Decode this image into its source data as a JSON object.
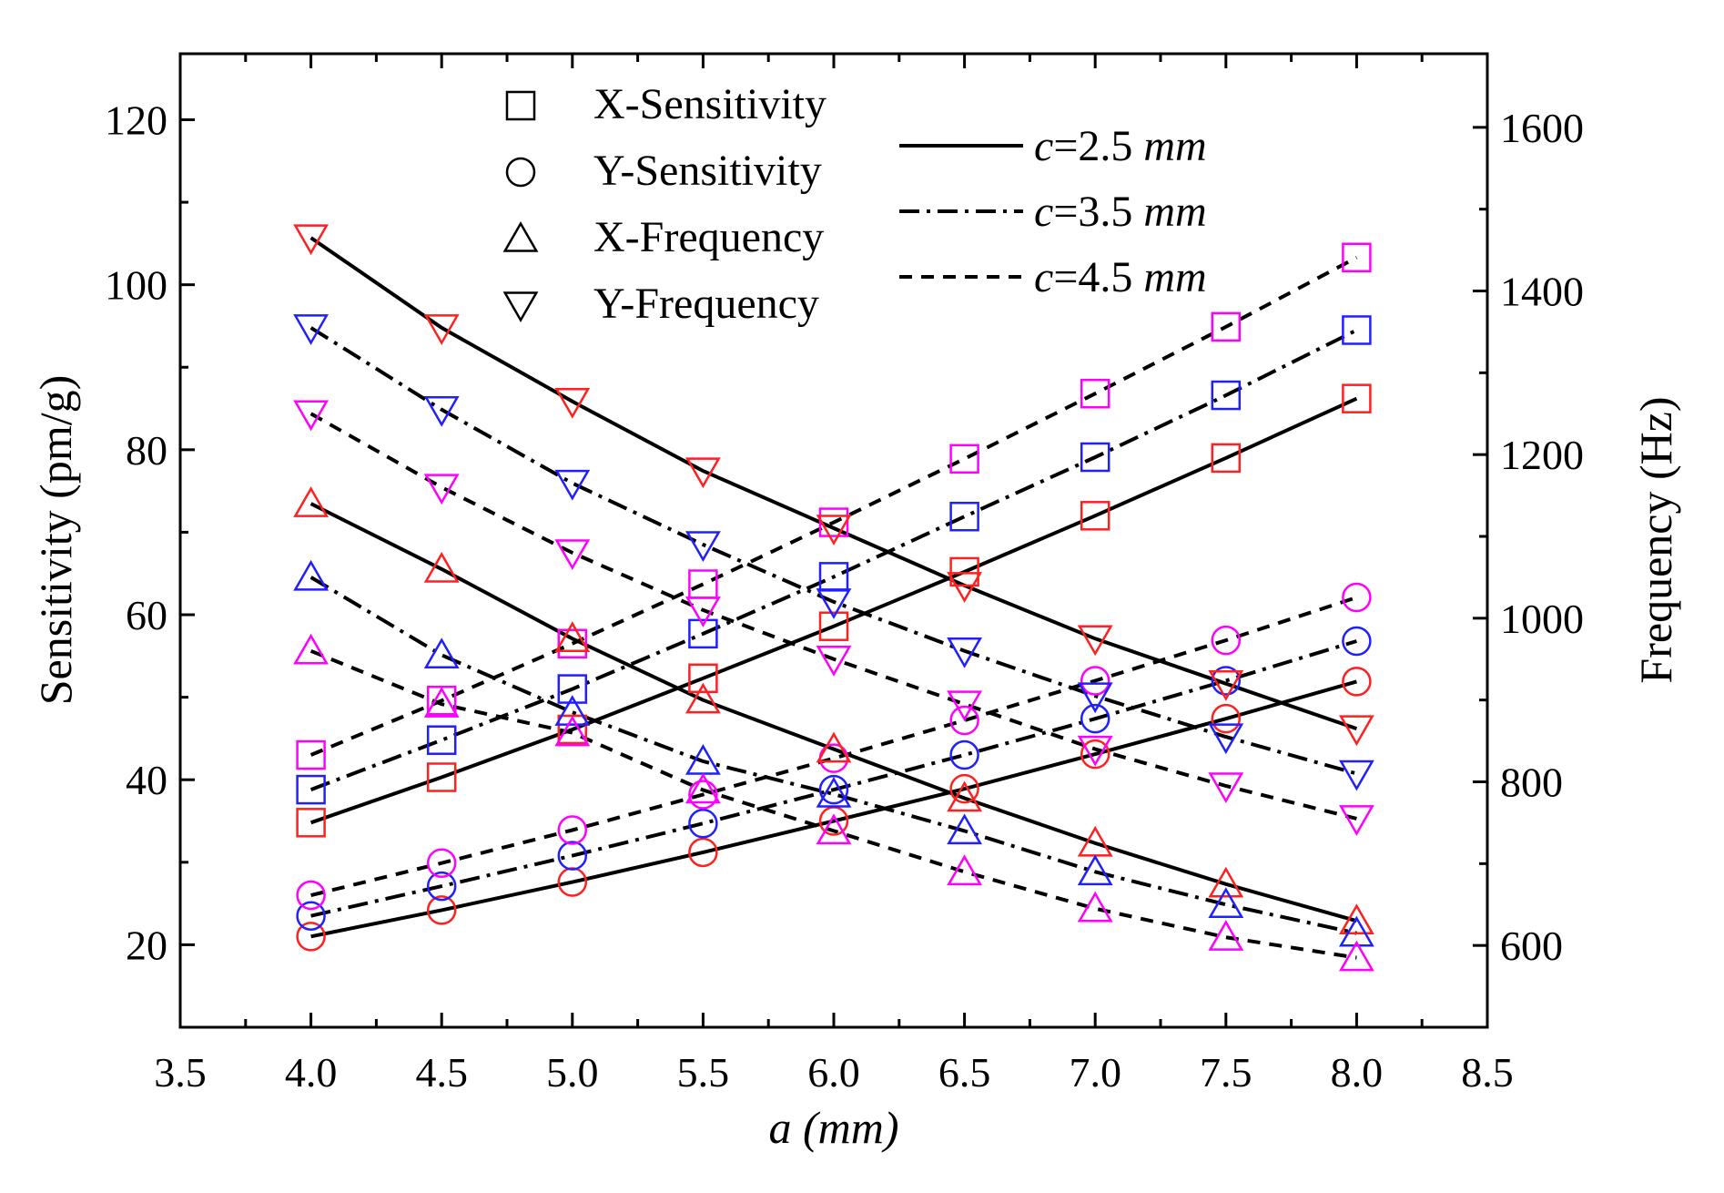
{
  "chart_data": {
    "type": "line",
    "x": [
      4.0,
      4.5,
      5.0,
      5.5,
      6.0,
      6.5,
      7.0,
      7.5,
      8.0
    ],
    "xlabel": "a (mm)",
    "ylabel_left": "Sensitivity (pm/g)",
    "ylabel_right": "Frequency (Hz)",
    "xlim": [
      3.5,
      8.5
    ],
    "ylim_left": [
      10,
      128
    ],
    "ylim_right": [
      500,
      1690
    ],
    "x_ticks": [
      "3.5",
      "4.0",
      "4.5",
      "5.0",
      "5.5",
      "6.0",
      "6.5",
      "7.0",
      "7.5",
      "8.0",
      "8.5"
    ],
    "y_left_ticks": [
      "20",
      "40",
      "60",
      "80",
      "100",
      "120"
    ],
    "y_right_ticks": [
      "600",
      "800",
      "1000",
      "1200",
      "1400",
      "1600"
    ],
    "colors": {
      "c2.5": "#ff2020",
      "c3.5": "#2020ff",
      "c4.5": "#ff00ff",
      "line": "#000000"
    },
    "legend_markers": [
      {
        "marker": "square",
        "label": "X-Sensitivity"
      },
      {
        "marker": "circle",
        "label": "Y-Sensitivity"
      },
      {
        "marker": "triangle-up",
        "label": "X-Frequency"
      },
      {
        "marker": "triangle-down",
        "label": "Y-Frequency"
      }
    ],
    "legend_lines": [
      {
        "style": "solid",
        "prefix": "c",
        "label": "=2.5 ",
        "unit": "mm"
      },
      {
        "style": "dashdot",
        "prefix": "c",
        "label": "=3.5 ",
        "unit": "mm"
      },
      {
        "style": "dash",
        "prefix": "c",
        "label": "=4.5 ",
        "unit": "mm"
      }
    ],
    "series": [
      {
        "name": "X-Sensitivity c=2.5 mm",
        "axis": "left",
        "marker": "square",
        "group": "c2.5",
        "values": [
          34.8,
          40.3,
          46.1,
          52.3,
          58.6,
          65.2,
          72.0,
          79.0,
          86.2
        ]
      },
      {
        "name": "X-Sensitivity c=3.5 mm",
        "axis": "left",
        "marker": "square",
        "group": "c3.5",
        "values": [
          38.8,
          44.8,
          51.0,
          57.7,
          64.6,
          71.9,
          79.1,
          86.6,
          94.5
        ]
      },
      {
        "name": "X-Sensitivity c=4.5 mm",
        "axis": "left",
        "marker": "square",
        "group": "c4.5",
        "values": [
          43.0,
          49.6,
          56.5,
          63.7,
          71.2,
          78.9,
          86.8,
          94.9,
          103.3
        ]
      },
      {
        "name": "Y-Sensitivity c=2.5 mm",
        "axis": "left",
        "marker": "circle",
        "group": "c2.5",
        "values": [
          21.0,
          24.2,
          27.6,
          31.2,
          35.0,
          38.9,
          43.1,
          47.4,
          51.9
        ]
      },
      {
        "name": "Y-Sensitivity c=3.5 mm",
        "axis": "left",
        "marker": "circle",
        "group": "c3.5",
        "values": [
          23.5,
          27.1,
          30.8,
          34.7,
          38.8,
          43.0,
          47.4,
          52.0,
          56.8
        ]
      },
      {
        "name": "Y-Sensitivity c=4.5 mm",
        "axis": "left",
        "marker": "circle",
        "group": "c4.5",
        "values": [
          26.0,
          29.9,
          33.9,
          38.2,
          42.6,
          47.2,
          52.0,
          56.9,
          62.1
        ]
      },
      {
        "name": "X-Frequency c=2.5 mm",
        "axis": "right",
        "marker": "triangle-up",
        "group": "c2.5",
        "values": [
          1140,
          1060,
          975,
          900,
          840,
          780,
          725,
          675,
          630
        ]
      },
      {
        "name": "X-Frequency c=3.5 mm",
        "axis": "right",
        "marker": "triangle-up",
        "group": "c3.5",
        "values": [
          1050,
          955,
          885,
          825,
          785,
          740,
          690,
          650,
          615
        ]
      },
      {
        "name": "X-Frequency c=4.5 mm",
        "axis": "right",
        "marker": "triangle-up",
        "group": "c4.5",
        "values": [
          960,
          895,
          860,
          790,
          740,
          690,
          645,
          610,
          585
        ]
      },
      {
        "name": "Y-Frequency c=2.5 mm",
        "axis": "right",
        "marker": "triangle-down",
        "group": "c2.5",
        "values": [
          1465,
          1355,
          1265,
          1180,
          1110,
          1040,
          975,
          920,
          865
        ]
      },
      {
        "name": "Y-Frequency c=3.5 mm",
        "axis": "right",
        "marker": "triangle-down",
        "group": "c3.5",
        "values": [
          1355,
          1255,
          1165,
          1090,
          1020,
          960,
          905,
          855,
          810
        ]
      },
      {
        "name": "Y-Frequency c=4.5 mm",
        "axis": "right",
        "marker": "triangle-down",
        "group": "c4.5",
        "values": [
          1250,
          1160,
          1080,
          1010,
          950,
          895,
          840,
          795,
          755
        ]
      }
    ]
  }
}
